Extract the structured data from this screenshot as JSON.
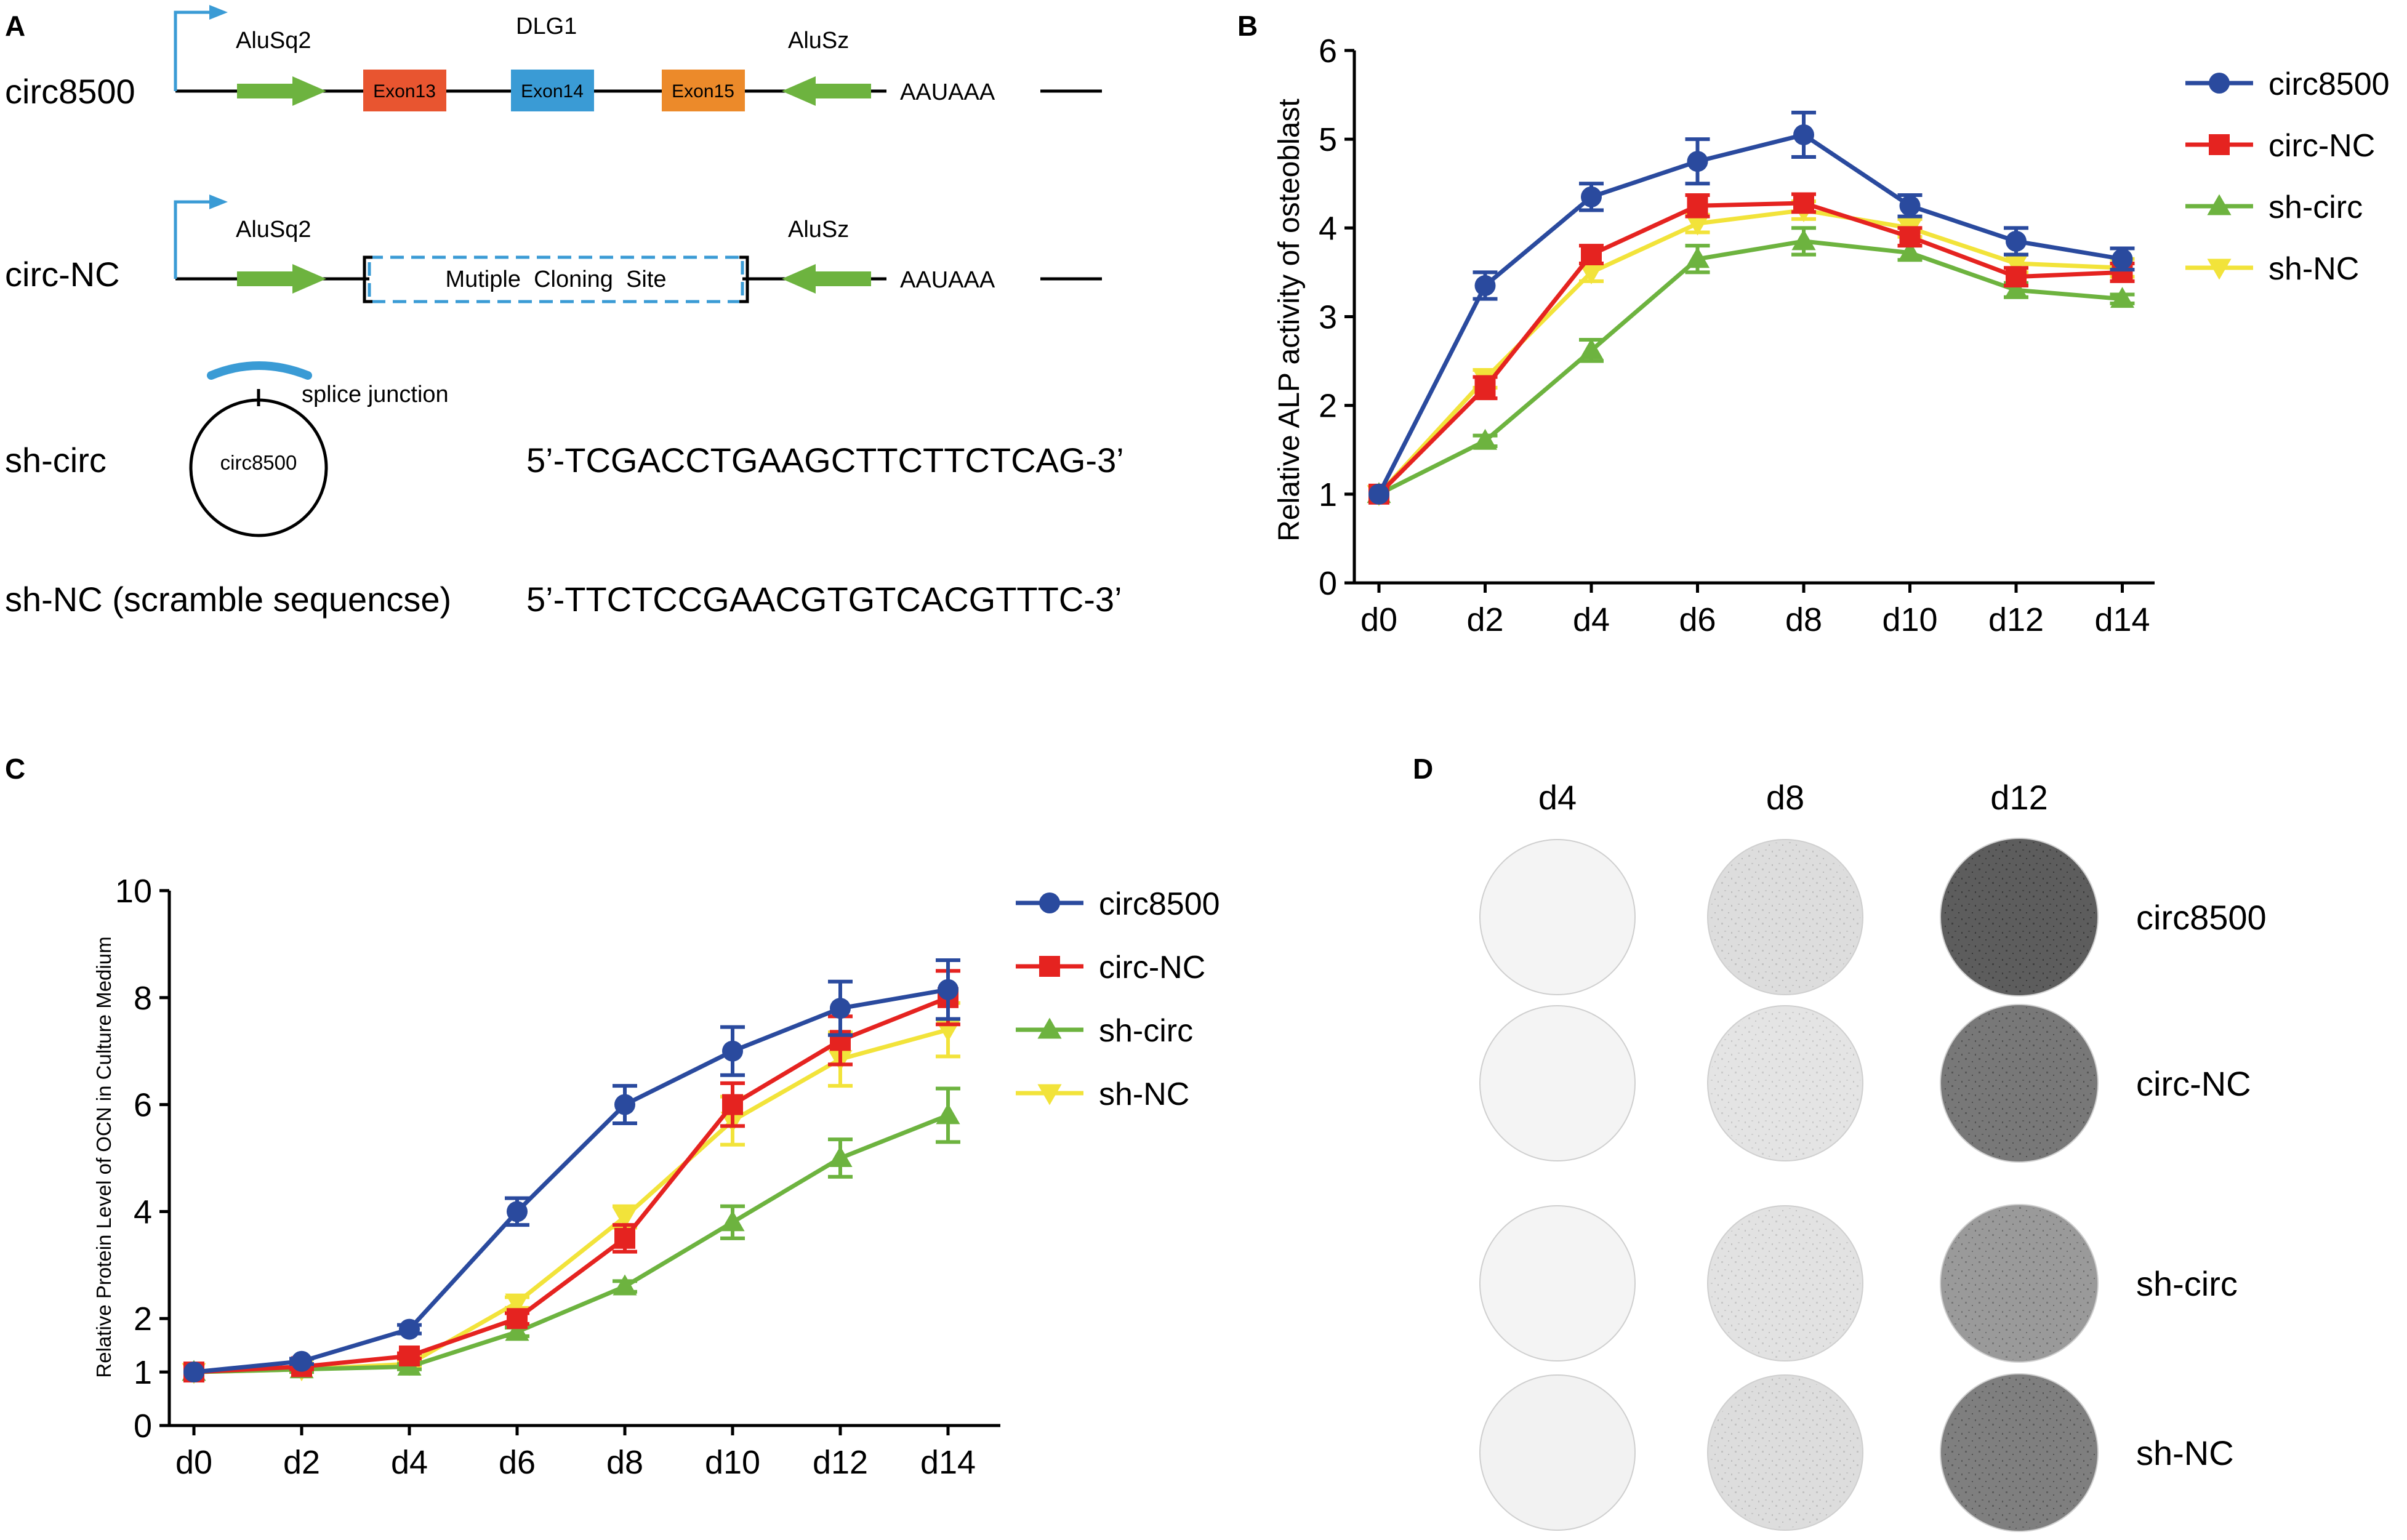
{
  "panel_labels": {
    "a": "A",
    "b": "B",
    "c": "C",
    "d": "D"
  },
  "panel_a": {
    "gene": "DLG1",
    "alu_left": "AluSq2",
    "alu_right": "AluSz",
    "polya": "AAUAAA",
    "exons": [
      "Exon13",
      "Exon14",
      "Exon15"
    ],
    "mcs": "Mutiple  Cloning  Site",
    "splice": "splice junction",
    "circle_label": "circ8500",
    "rows": {
      "circ8500": "circ8500",
      "circNC": "circ-NC",
      "shcirc": "sh-circ",
      "shNC": "sh-NC (scramble sequencse)"
    },
    "seq_shcirc": "5’-TCGACCTGAAGCTTCTTCTCAG-3’",
    "seq_shNC": "5’-TTCTCCGAACGTGTCACGTTTC-3’"
  },
  "colors": {
    "circ8500": "#2a4a9e",
    "circNC": "#e52320",
    "shcirc": "#6db33f",
    "shNC": "#f2e33a",
    "exon13": "#e85530",
    "exon14": "#3a9bd5",
    "exon15": "#ec8a2a",
    "alu": "#6db33f",
    "promoter": "#3a9bd5"
  },
  "chart_data": [
    {
      "panel": "B",
      "type": "line",
      "categories": [
        "d0",
        "d2",
        "d4",
        "d6",
        "d8",
        "d10",
        "d12",
        "d14"
      ],
      "ylabel": "Relative ALP activity of osteoblast",
      "ylim": [
        0,
        6
      ],
      "yticks": [
        0,
        1,
        2,
        3,
        4,
        5,
        6
      ],
      "legend": "top-right",
      "series": [
        {
          "name": "circ8500",
          "marker": "circle",
          "values": [
            1.0,
            3.35,
            4.35,
            4.75,
            5.05,
            4.25,
            3.85,
            3.65
          ],
          "err": [
            0,
            0.15,
            0.15,
            0.25,
            0.25,
            0.12,
            0.15,
            0.12
          ]
        },
        {
          "name": "circ-NC",
          "marker": "square",
          "values": [
            1.0,
            2.2,
            3.7,
            4.25,
            4.28,
            3.9,
            3.45,
            3.5
          ],
          "err": [
            0,
            0.12,
            0.1,
            0.12,
            0.1,
            0.1,
            0.1,
            0.1
          ]
        },
        {
          "name": "sh-circ",
          "marker": "triangle-up",
          "values": [
            1.0,
            1.6,
            2.62,
            3.65,
            3.85,
            3.72,
            3.3,
            3.2
          ],
          "err": [
            0,
            0.06,
            0.12,
            0.15,
            0.15,
            0.08,
            0.08,
            0.05
          ]
        },
        {
          "name": "sh-NC",
          "marker": "triangle-down",
          "values": [
            1.0,
            2.3,
            3.5,
            4.05,
            4.2,
            4.0,
            3.6,
            3.55
          ],
          "err": [
            0,
            0.1,
            0.1,
            0.1,
            0.1,
            0.1,
            0.1,
            0.1
          ]
        }
      ]
    },
    {
      "panel": "C",
      "type": "line",
      "categories": [
        "d0",
        "d2",
        "d4",
        "d6",
        "d8",
        "d10",
        "d12",
        "d14"
      ],
      "ylabel": "Relative Protein Level of OCN in Culture Medium",
      "ylim": [
        0,
        10
      ],
      "yticks": [
        0,
        1,
        2,
        4,
        6,
        8,
        10
      ],
      "legend": "top-right",
      "series": [
        {
          "name": "circ8500",
          "marker": "circle",
          "values": [
            1.0,
            1.2,
            1.8,
            4.0,
            6.0,
            7.0,
            7.8,
            8.15
          ],
          "err": [
            0,
            0.05,
            0.08,
            0.25,
            0.35,
            0.45,
            0.5,
            0.55
          ]
        },
        {
          "name": "circ-NC",
          "marker": "square",
          "values": [
            1.0,
            1.1,
            1.3,
            2.0,
            3.5,
            6.0,
            7.2,
            8.0
          ],
          "err": [
            0,
            0.05,
            0.05,
            0.1,
            0.25,
            0.4,
            0.45,
            0.5
          ]
        },
        {
          "name": "sh-circ",
          "marker": "triangle-up",
          "values": [
            1.0,
            1.05,
            1.1,
            1.75,
            2.6,
            3.8,
            5.0,
            5.8
          ],
          "err": [
            0,
            0.05,
            0.05,
            0.08,
            0.1,
            0.3,
            0.35,
            0.5
          ]
        },
        {
          "name": "sh-NC",
          "marker": "triangle-down",
          "values": [
            1.0,
            1.05,
            1.15,
            2.3,
            3.9,
            5.7,
            6.85,
            7.4
          ],
          "err": [
            0,
            0.05,
            0.05,
            0.1,
            0.2,
            0.45,
            0.5,
            0.5
          ]
        }
      ]
    }
  ],
  "panel_d": {
    "columns": [
      "d4",
      "d8",
      "d12"
    ],
    "rows": [
      "circ8500",
      "circ-NC",
      "sh-circ",
      "sh-NC"
    ],
    "staining_grey_levels": [
      [
        0.05,
        0.15,
        0.72
      ],
      [
        0.05,
        0.12,
        0.6
      ],
      [
        0.05,
        0.13,
        0.45
      ],
      [
        0.06,
        0.15,
        0.57
      ]
    ]
  }
}
